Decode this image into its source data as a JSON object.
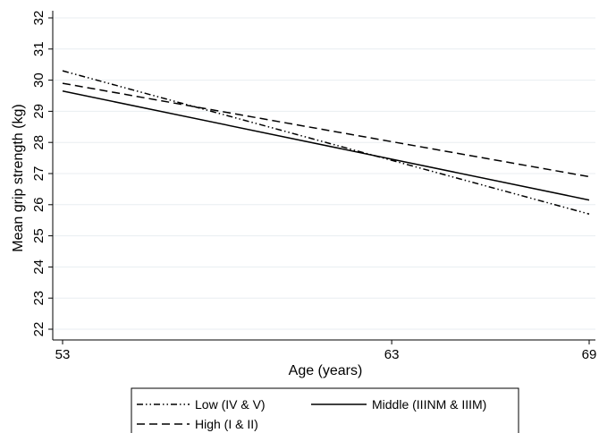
{
  "chart_data": {
    "type": "line",
    "title": "",
    "xlabel": "Age (years)",
    "ylabel": "Mean grip strength (kg)",
    "xlim": [
      53,
      69
    ],
    "ylim": [
      22,
      32
    ],
    "xticks": [
      "53",
      "63",
      "69"
    ],
    "yticks": [
      "22",
      "23",
      "24",
      "25",
      "26",
      "27",
      "28",
      "29",
      "30",
      "31",
      "32"
    ],
    "grid": true,
    "legend_position": "bottom",
    "series": [
      {
        "name": "Low (IV & V)",
        "style": "dash-dot-dot",
        "color": "#000000",
        "x": [
          53,
          69
        ],
        "y": [
          30.3,
          25.7
        ]
      },
      {
        "name": "Middle (IIINM & IIIM)",
        "style": "solid",
        "color": "#000000",
        "x": [
          53,
          69
        ],
        "y": [
          29.65,
          26.15
        ]
      },
      {
        "name": "High (I & II)",
        "style": "dashed",
        "color": "#000000",
        "x": [
          53,
          69
        ],
        "y": [
          29.9,
          26.9
        ]
      }
    ]
  }
}
